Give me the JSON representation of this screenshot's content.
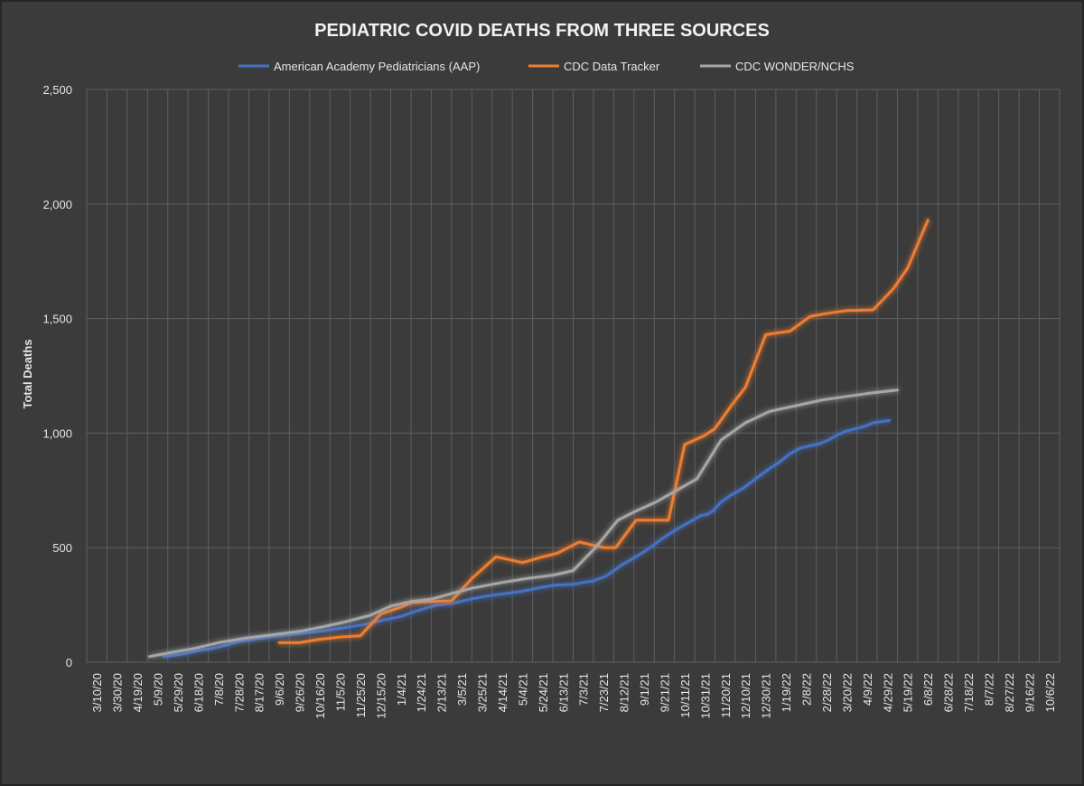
{
  "chart_data": {
    "type": "line",
    "title": "PEDIATRIC COVID DEATHS FROM THREE SOURCES",
    "xlabel": "",
    "ylabel": "Total Deaths",
    "ylim": [
      0,
      2500
    ],
    "y_ticks": [
      "0",
      "500",
      "1,000",
      "1,500",
      "2,000",
      "2,500"
    ],
    "y_tick_values": [
      0,
      500,
      1000,
      1500,
      2000,
      2500
    ],
    "grid": true,
    "legend_position": "top",
    "categories": [
      "3/10/20",
      "3/30/20",
      "4/19/20",
      "5/9/20",
      "5/29/20",
      "6/18/20",
      "7/8/20",
      "7/28/20",
      "8/17/20",
      "9/6/20",
      "9/26/20",
      "10/16/20",
      "11/5/20",
      "11/25/20",
      "12/15/20",
      "1/4/21",
      "1/24/21",
      "2/13/21",
      "3/5/21",
      "3/25/21",
      "4/14/21",
      "5/4/21",
      "5/24/21",
      "6/13/21",
      "7/3/21",
      "7/23/21",
      "8/12/21",
      "9/1/21",
      "9/21/21",
      "10/11/21",
      "10/31/21",
      "11/20/21",
      "12/10/21",
      "12/30/21",
      "1/19/22",
      "2/8/22",
      "2/28/22",
      "3/20/22",
      "4/9/22",
      "4/29/22",
      "5/19/22",
      "6/8/22",
      "6/28/22",
      "7/18/22",
      "8/7/22",
      "8/27/22",
      "9/16/22",
      "10/6/22"
    ],
    "series": [
      {
        "name": "American Academy Pediatricians (AAP)",
        "color": "#4472c4",
        "points": [
          [
            3.3,
            25
          ],
          [
            4.2,
            35
          ],
          [
            5,
            50
          ],
          [
            5.7,
            60
          ],
          [
            6.4,
            75
          ],
          [
            7,
            90
          ],
          [
            7.7,
            100
          ],
          [
            8.5,
            110
          ],
          [
            9.5,
            120
          ],
          [
            10.4,
            128
          ],
          [
            11.3,
            138
          ],
          [
            12.2,
            150
          ],
          [
            13.2,
            165
          ],
          [
            14.2,
            185
          ],
          [
            15,
            200
          ],
          [
            15.8,
            225
          ],
          [
            16.8,
            250
          ],
          [
            17.6,
            258
          ],
          [
            18.4,
            275
          ],
          [
            19.3,
            290
          ],
          [
            20.2,
            300
          ],
          [
            21,
            310
          ],
          [
            21.8,
            325
          ],
          [
            22.5,
            335
          ],
          [
            23,
            338
          ],
          [
            23.5,
            340
          ],
          [
            24,
            348
          ],
          [
            24.5,
            355
          ],
          [
            25.1,
            375
          ],
          [
            25.9,
            425
          ],
          [
            26.6,
            460
          ],
          [
            27.3,
            500
          ],
          [
            27.9,
            540
          ],
          [
            28.5,
            575
          ],
          [
            29,
            600
          ],
          [
            29.4,
            620
          ],
          [
            29.8,
            640
          ],
          [
            30.1,
            645
          ],
          [
            30.4,
            660
          ],
          [
            30.8,
            700
          ],
          [
            31.3,
            730
          ],
          [
            31.9,
            760
          ],
          [
            32.5,
            800
          ],
          [
            33.1,
            840
          ],
          [
            33.7,
            875
          ],
          [
            34.2,
            910
          ],
          [
            34.7,
            935
          ],
          [
            35.2,
            945
          ],
          [
            35.7,
            955
          ],
          [
            36.1,
            970
          ],
          [
            36.6,
            995
          ],
          [
            37,
            1010
          ],
          [
            37.5,
            1020
          ],
          [
            37.9,
            1030
          ],
          [
            38.3,
            1045
          ],
          [
            38.7,
            1050
          ],
          [
            39.1,
            1055
          ]
        ]
      },
      {
        "name": "CDC Data Tracker",
        "color": "#ed7d31",
        "points": [
          [
            9,
            85
          ],
          [
            10,
            85
          ],
          [
            11,
            100
          ],
          [
            12,
            110
          ],
          [
            13,
            115
          ],
          [
            14,
            210
          ],
          [
            15,
            240
          ],
          [
            15.5,
            260
          ],
          [
            16.5,
            265
          ],
          [
            17.5,
            268
          ],
          [
            18.5,
            365
          ],
          [
            19.7,
            460
          ],
          [
            21,
            435
          ],
          [
            22,
            460
          ],
          [
            22.7,
            475
          ],
          [
            23.8,
            525
          ],
          [
            25,
            500
          ],
          [
            25.6,
            500
          ],
          [
            26.6,
            620
          ],
          [
            27.4,
            620
          ],
          [
            28.2,
            620
          ],
          [
            29,
            950
          ],
          [
            30,
            990
          ],
          [
            30.5,
            1020
          ],
          [
            31.3,
            1120
          ],
          [
            32,
            1200
          ],
          [
            33,
            1430
          ],
          [
            34.2,
            1445
          ],
          [
            35.2,
            1510
          ],
          [
            36.2,
            1525
          ],
          [
            37,
            1535
          ],
          [
            38.3,
            1538
          ],
          [
            39.3,
            1630
          ],
          [
            40,
            1720
          ],
          [
            41,
            1930
          ]
        ]
      },
      {
        "name": "CDC WONDER/NCHS",
        "color": "#a6a6a6",
        "points": [
          [
            2.6,
            25
          ],
          [
            3.8,
            45
          ],
          [
            4.8,
            60
          ],
          [
            6,
            85
          ],
          [
            7.3,
            105
          ],
          [
            8.5,
            118
          ],
          [
            10,
            135
          ],
          [
            11,
            152
          ],
          [
            12.2,
            175
          ],
          [
            13.5,
            205
          ],
          [
            14.5,
            245
          ],
          [
            15.5,
            265
          ],
          [
            16.5,
            275
          ],
          [
            17.5,
            300
          ],
          [
            18.6,
            325
          ],
          [
            20,
            348
          ],
          [
            21.2,
            365
          ],
          [
            22.5,
            380
          ],
          [
            23.5,
            400
          ],
          [
            24.6,
            500
          ],
          [
            25.7,
            620
          ],
          [
            26.6,
            660
          ],
          [
            27.6,
            700
          ],
          [
            28.6,
            750
          ],
          [
            29.6,
            800
          ],
          [
            30.8,
            970
          ],
          [
            32,
            1045
          ],
          [
            33.2,
            1095
          ],
          [
            34.5,
            1120
          ],
          [
            35.8,
            1145
          ],
          [
            37,
            1160
          ],
          [
            38.2,
            1175
          ],
          [
            39.5,
            1188
          ]
        ]
      }
    ]
  }
}
